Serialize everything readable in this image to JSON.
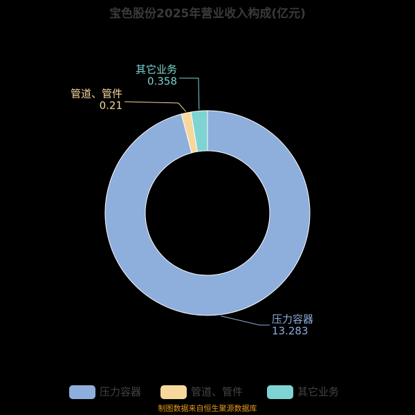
{
  "chart_data": {
    "type": "donut",
    "title": "宝色股份2025年营业收入构成(亿元)",
    "categories": [
      "压力容器",
      "管道、管件",
      "其它业务"
    ],
    "values": [
      13.283,
      0.21,
      0.358
    ],
    "colors": [
      "#8eaedc",
      "#f8d79c",
      "#7ed3d3"
    ],
    "legend": "bottom",
    "source": "制图数据来自恒生聚源数据库"
  }
}
